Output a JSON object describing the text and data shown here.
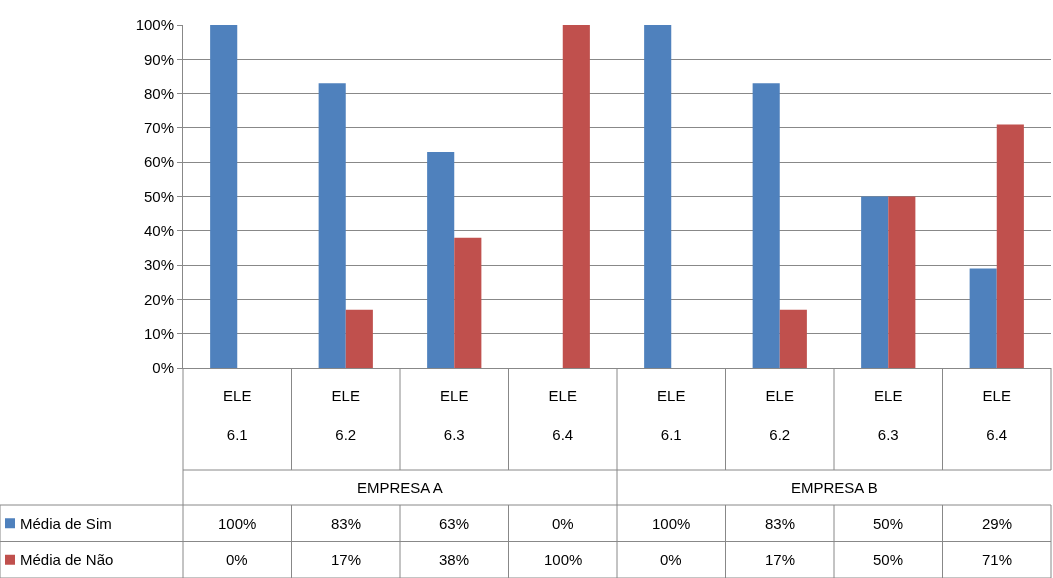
{
  "chart_data": {
    "type": "bar",
    "categories": [
      "ELE 6.1",
      "ELE 6.2",
      "ELE 6.3",
      "ELE 6.4",
      "ELE 6.1",
      "ELE 6.2",
      "ELE 6.3",
      "ELE 6.4"
    ],
    "series": [
      {
        "name": "Média de Sim",
        "color": "#4f81bd",
        "values": [
          100,
          83,
          63,
          0,
          100,
          83,
          50,
          29
        ],
        "value_labels": [
          "100%",
          "83%",
          "63%",
          "0%",
          "100%",
          "83%",
          "50%",
          "29%"
        ]
      },
      {
        "name": "Média de Não",
        "color": "#c0504d",
        "values": [
          0,
          17,
          38,
          100,
          0,
          17,
          50,
          71
        ],
        "value_labels": [
          "0%",
          "17%",
          "38%",
          "100%",
          "0%",
          "17%",
          "50%",
          "71%"
        ]
      }
    ],
    "annotations": [
      "EMPRESA A",
      "EMPRESA B"
    ],
    "ylim": [
      0,
      100
    ],
    "yticks": [
      {
        "value": 0,
        "label": "0%"
      },
      {
        "value": 10,
        "label": "10%"
      },
      {
        "value": 20,
        "label": "20%"
      },
      {
        "value": 30,
        "label": "30%"
      },
      {
        "value": 40,
        "label": "40%"
      },
      {
        "value": 50,
        "label": "50%"
      },
      {
        "value": 60,
        "label": "60%"
      },
      {
        "value": 70,
        "label": "70%"
      },
      {
        "value": 80,
        "label": "80%"
      },
      {
        "value": 90,
        "label": "90%"
      },
      {
        "value": 100,
        "label": "100%"
      }
    ],
    "grid": "y",
    "legend": "bottom"
  }
}
